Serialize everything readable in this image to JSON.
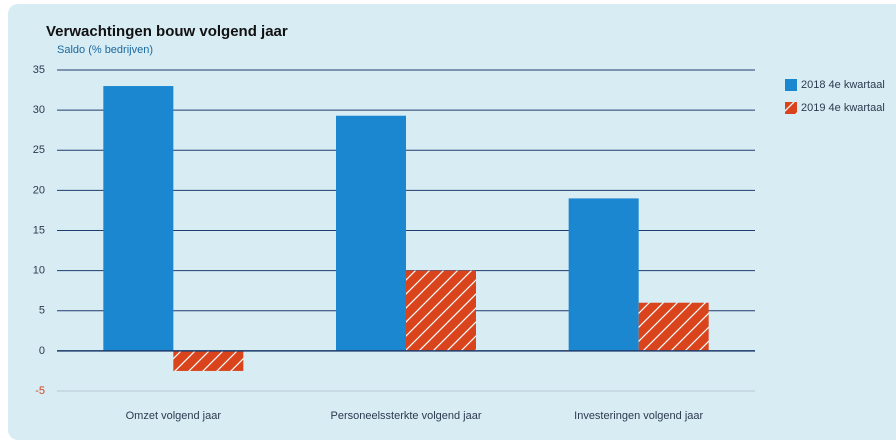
{
  "chart_data": {
    "type": "bar",
    "title": "Verwachtingen bouw volgend jaar",
    "subtitle": "Saldo (% bedrijven)",
    "categories": [
      "Omzet volgend jaar",
      "Personeelssterkte volgend jaar",
      "Investeringen volgend jaar"
    ],
    "series": [
      {
        "name": "2018 4e kwartaal",
        "color": "#1a87d0",
        "values": [
          33,
          29.3,
          19
        ]
      },
      {
        "name": "2019 4e kwartaal",
        "color": "#d9441c",
        "values": [
          -2.5,
          10,
          6
        ]
      }
    ],
    "ylim": [
      -5,
      35
    ],
    "yticks": [
      -5,
      0,
      5,
      10,
      15,
      20,
      25,
      30,
      35
    ],
    "grid": true,
    "legend": "right"
  }
}
